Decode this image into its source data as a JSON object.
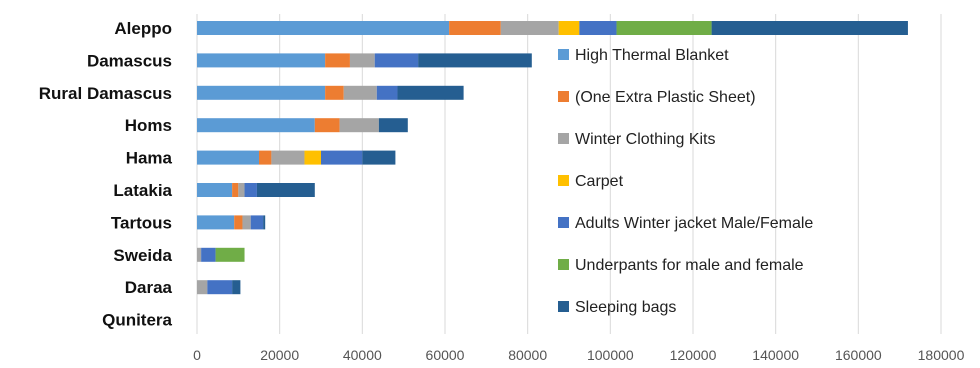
{
  "chart_data": {
    "type": "bar",
    "orientation": "horizontal",
    "stacked": true,
    "categories": [
      "Aleppo",
      "Damascus",
      "Rural Damascus",
      "Homs",
      "Hama",
      "Latakia",
      "Tartous",
      "Sweida",
      "Daraa",
      "Qunitera"
    ],
    "series": [
      {
        "name": "High Thermal Blanket",
        "color": "#5b9bd5",
        "values": [
          61000,
          31000,
          31000,
          28500,
          15000,
          8500,
          9000,
          0,
          0,
          0
        ]
      },
      {
        "name": "(One Extra Plastic Sheet)",
        "color": "#ed7d31",
        "values": [
          12500,
          6000,
          4500,
          6000,
          3000,
          1500,
          2000,
          0,
          0,
          0
        ]
      },
      {
        "name": "Winter Clothing Kits",
        "color": "#a5a5a5",
        "values": [
          14000,
          6000,
          8000,
          9500,
          8000,
          1500,
          2000,
          1000,
          2500,
          0
        ]
      },
      {
        "name": "Carpet",
        "color": "#ffc000",
        "values": [
          5000,
          0,
          0,
          0,
          4000,
          0,
          0,
          0,
          0,
          0
        ]
      },
      {
        "name": "Adults Winter jacket Male/Female",
        "color": "#4472c4",
        "values": [
          9000,
          10500,
          5000,
          0,
          10000,
          3000,
          3000,
          3500,
          6000,
          0
        ]
      },
      {
        "name": "Underpants for male and female",
        "color": "#70ad47",
        "values": [
          23000,
          0,
          0,
          0,
          0,
          0,
          0,
          7000,
          0,
          0
        ]
      },
      {
        "name": "Sleeping bags",
        "color": "#255e91",
        "values": [
          47500,
          27500,
          16000,
          7000,
          8000,
          14000,
          500,
          0,
          2000,
          0
        ]
      }
    ],
    "xlim": [
      0,
      180000
    ],
    "xticks": [
      "0",
      "20000",
      "40000",
      "60000",
      "80000",
      "100000",
      "120000",
      "140000",
      "160000",
      "180000"
    ],
    "grid": "vertical",
    "legend_position": "right-inside"
  }
}
